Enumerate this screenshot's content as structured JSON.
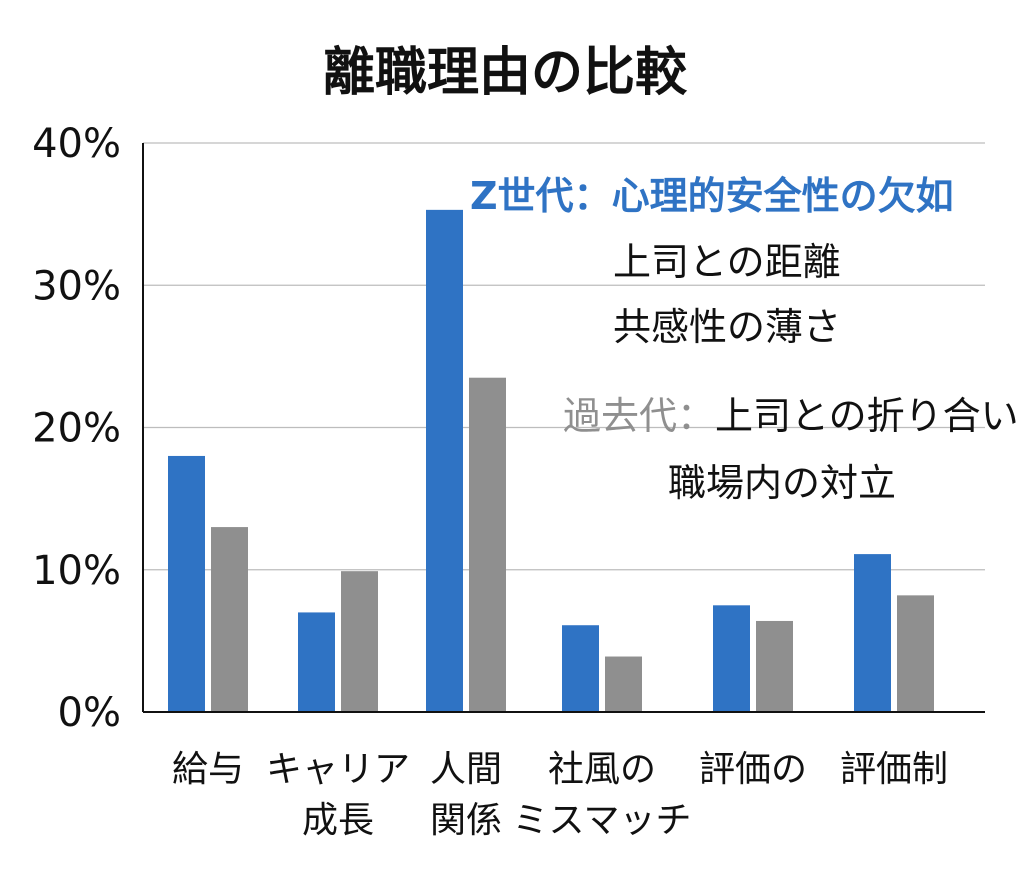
{
  "chart_data": {
    "type": "bar",
    "title": "離職理由の比較",
    "xlabel": "",
    "ylabel": "",
    "ylim": [
      0,
      40
    ],
    "y_tick_labels": [
      "0%",
      "10%",
      "20%",
      "30%",
      "40%"
    ],
    "y_ticks": [
      0,
      10,
      20,
      30,
      40
    ],
    "grid": true,
    "categories": [
      [
        "給与"
      ],
      [
        "キャリア",
        "成長"
      ],
      [
        "人間",
        "関係"
      ],
      [
        "社風の",
        "ミスマッチ"
      ],
      [
        "評価の"
      ],
      [
        "評価制"
      ]
    ],
    "series": [
      {
        "color": "#2f73c4",
        "values": [
          18,
          7,
          35.3,
          6.1,
          7.5,
          11.1
        ]
      },
      {
        "color": "#8f8f8f",
        "values": [
          13,
          9.9,
          23.5,
          3.9,
          6.4,
          8.2
        ]
      }
    ],
    "annotations": {
      "gen_z_line": {
        "prefix": "Z世代：",
        "text": "心理的安全性の欠如",
        "color": "#2f73c4"
      },
      "gen_z_items": [
        "上司との距離",
        "共感性の薄さ"
      ],
      "past_line": {
        "prefix": "過去代：",
        "text": "上司との折り合い",
        "prefix_color": "#8f8f8f",
        "text_color": "#111111"
      },
      "past_items": [
        "職場内の対立"
      ]
    },
    "colors": {
      "axis": "#111111",
      "grid": "#bdbdbd",
      "text": "#111111"
    }
  }
}
